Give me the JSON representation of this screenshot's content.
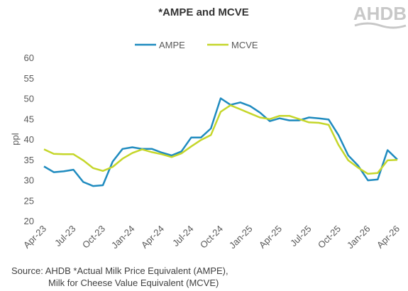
{
  "logo": "AHDB",
  "chart_data": {
    "type": "line",
    "title": "*AMPE and MCVE",
    "y_label": "ppl",
    "categories": [
      "Apr-23",
      null,
      null,
      "Jul-23",
      null,
      null,
      "Oct-23",
      null,
      null,
      "Jan-24",
      null,
      null,
      "Apr-24",
      null,
      null,
      "Jul-24",
      null,
      null,
      "Oct-24",
      null,
      null,
      "Jan-25",
      null,
      null,
      "Apr-25",
      null,
      null,
      "Jul-25",
      null,
      null,
      "Oct-25",
      null,
      null,
      "Jan-26",
      null,
      null,
      "Apr-26"
    ],
    "series": [
      {
        "name": "AMPE",
        "color": "#1f8bbf",
        "values": [
          33.3,
          31.9,
          32.1,
          32.5,
          29.5,
          28.5,
          28.7,
          34.5,
          37.6,
          38.0,
          37.6,
          37.6,
          36.7,
          36.0,
          37.0,
          40.4,
          40.4,
          42.6,
          50.0,
          48.4,
          49.0,
          48.1,
          46.5,
          44.4,
          45.1,
          44.6,
          44.6,
          45.3,
          45.1,
          44.8,
          41.0,
          36.0,
          33.5,
          29.9,
          30.1,
          37.3,
          35.0
        ]
      },
      {
        "name": "MCVE",
        "color": "#c5d62a",
        "values": [
          37.5,
          36.4,
          36.3,
          36.3,
          34.8,
          32.9,
          32.2,
          33.2,
          35.2,
          36.6,
          37.5,
          36.8,
          36.3,
          35.6,
          36.5,
          38.2,
          39.8,
          41.0,
          46.7,
          48.3,
          47.3,
          46.3,
          45.3,
          44.9,
          45.7,
          45.7,
          44.9,
          44.1,
          44.0,
          43.5,
          38.6,
          34.8,
          33.0,
          31.5,
          31.7,
          34.8,
          34.9
        ]
      }
    ],
    "ylim": [
      20,
      60
    ],
    "yticks": [
      20,
      25,
      30,
      35,
      40,
      45,
      50,
      55,
      60
    ],
    "grid": false,
    "legend": "top",
    "source": [
      "Source: AHDB  *Actual Milk Price Equivalent (AMPE),",
      "Milk for Cheese Value Equivalent (MCVE)"
    ]
  }
}
